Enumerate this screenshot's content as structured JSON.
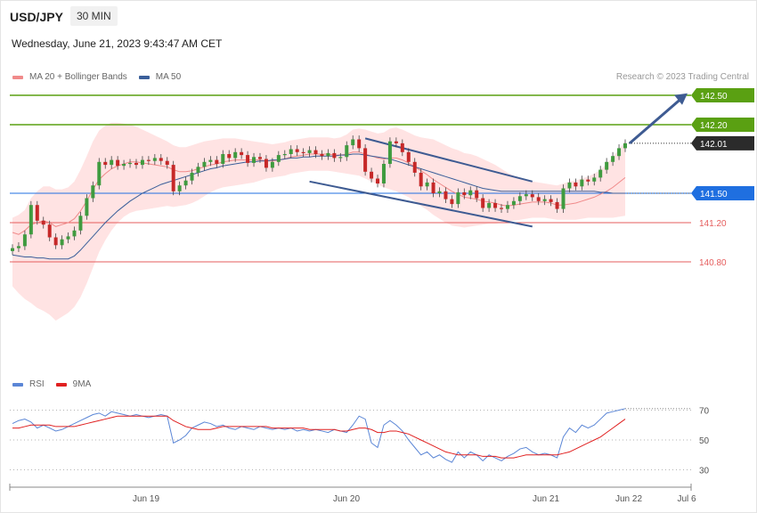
{
  "header": {
    "symbol": "USD/JPY",
    "timeframe": "30 MIN",
    "datetime": "Wednesday, June 21, 2023 9:43:47 AM CET"
  },
  "legend_main": [
    {
      "label": "MA 20 + Bollinger Bands",
      "color": "#f08a8a"
    },
    {
      "label": "MA 50",
      "color": "#3a5f9a"
    }
  ],
  "legend_rsi": [
    {
      "label": "RSI",
      "color": "#5b86d6"
    },
    {
      "label": "9MA",
      "color": "#e02020"
    }
  ],
  "credit": "Research © 2023 Trading Central",
  "chart_data": {
    "type": "candlestick",
    "x_ticks": [
      "Jun 19",
      "Jun 20",
      "Jun 21",
      "Jun 22",
      "Jul 6"
    ],
    "y_range": [
      140.0,
      142.8
    ],
    "levels": [
      {
        "value": 142.5,
        "label": "142.50",
        "color": "#5aa012",
        "style": "resistance"
      },
      {
        "value": 142.2,
        "label": "142.20",
        "color": "#5aa012",
        "style": "resistance"
      },
      {
        "value": 142.01,
        "label": "142.01",
        "color": "#2b2b2b",
        "style": "last"
      },
      {
        "value": 141.5,
        "label": "141.50",
        "color": "#1f6fe0",
        "style": "pivot"
      },
      {
        "value": 141.2,
        "label": "141.20",
        "color": "#e55c5c",
        "style": "support"
      },
      {
        "value": 140.8,
        "label": "140.80",
        "color": "#e55c5c",
        "style": "support"
      }
    ],
    "candles": [
      140.94,
      140.96,
      141.08,
      141.38,
      141.22,
      141.18,
      141.05,
      140.97,
      141.03,
      141.06,
      141.12,
      141.27,
      141.45,
      141.58,
      141.82,
      141.79,
      141.84,
      141.78,
      141.8,
      141.81,
      141.79,
      141.84,
      141.83,
      141.86,
      141.83,
      141.79,
      141.52,
      141.58,
      141.63,
      141.71,
      141.77,
      141.82,
      141.84,
      141.8,
      141.9,
      141.86,
      141.92,
      141.89,
      141.81,
      141.87,
      141.85,
      141.76,
      141.82,
      141.89,
      141.9,
      141.95,
      141.92,
      141.91,
      141.94,
      141.9,
      141.88,
      141.91,
      141.86,
      141.87,
      141.99,
      142.05,
      141.96,
      141.72,
      141.65,
      141.6,
      141.8,
      142.03,
      142.01,
      141.92,
      141.82,
      141.71,
      141.57,
      141.61,
      141.5,
      141.52,
      141.44,
      141.39,
      141.51,
      141.48,
      141.53,
      141.45,
      141.35,
      141.4,
      141.35,
      141.34,
      141.38,
      141.42,
      141.47,
      141.49,
      141.46,
      141.42,
      141.44,
      141.41,
      141.34,
      141.55,
      141.61,
      141.57,
      141.64,
      141.62,
      141.66,
      141.74,
      141.82,
      141.88,
      141.96,
      142.01
    ],
    "ma20": [
      141.1,
      141.08,
      141.12,
      141.18,
      141.2,
      141.22,
      141.2,
      141.16,
      141.18,
      141.2,
      141.24,
      141.32,
      141.42,
      141.54,
      141.64,
      141.7,
      141.75,
      141.78,
      141.8,
      141.82,
      141.82,
      141.81,
      141.8,
      141.79,
      141.78,
      141.77,
      141.74,
      141.72,
      141.72,
      141.73,
      141.75,
      141.77,
      141.79,
      141.8,
      141.82,
      141.83,
      141.84,
      141.84,
      141.84,
      141.84,
      141.84,
      141.83,
      141.83,
      141.84,
      141.85,
      141.87,
      141.88,
      141.89,
      141.9,
      141.9,
      141.9,
      141.9,
      141.89,
      141.89,
      141.9,
      141.92,
      141.92,
      141.9,
      141.88,
      141.86,
      141.85,
      141.86,
      141.86,
      141.84,
      141.81,
      141.77,
      141.73,
      141.69,
      141.64,
      141.6,
      141.56,
      141.52,
      141.49,
      141.46,
      141.45,
      141.44,
      141.42,
      141.41,
      141.4,
      141.38,
      141.37,
      141.38,
      141.39,
      141.4,
      141.41,
      141.41,
      141.41,
      141.4,
      141.38,
      141.38,
      141.39,
      141.4,
      141.42,
      141.44,
      141.46,
      141.49,
      141.52,
      141.56,
      141.61,
      141.66
    ],
    "bb_upper": [
      141.25,
      141.28,
      141.33,
      141.45,
      141.52,
      141.57,
      141.57,
      141.54,
      141.54,
      141.56,
      141.62,
      141.74,
      141.88,
      142.03,
      142.14,
      142.19,
      142.22,
      142.22,
      142.21,
      142.2,
      142.18,
      142.15,
      142.12,
      142.09,
      142.06,
      142.03,
      141.99,
      141.97,
      141.97,
      141.99,
      142.01,
      142.03,
      142.04,
      142.05,
      142.06,
      142.06,
      142.06,
      142.05,
      142.04,
      142.03,
      142.02,
      142.01,
      142.0,
      142.01,
      142.02,
      142.04,
      142.05,
      142.06,
      142.07,
      142.07,
      142.07,
      142.07,
      142.06,
      142.07,
      142.1,
      142.15,
      142.16,
      142.15,
      142.13,
      142.11,
      142.12,
      142.16,
      142.17,
      142.15,
      142.12,
      142.09,
      142.07,
      142.06,
      142.05,
      142.02,
      141.99,
      141.96,
      141.94,
      141.91,
      141.9,
      141.88,
      141.85,
      141.82,
      141.79,
      141.75,
      141.71,
      141.68,
      141.66,
      141.64,
      141.62,
      141.61,
      141.6,
      141.59,
      141.58,
      141.6,
      141.62,
      141.63,
      141.65,
      141.67,
      141.7,
      141.74,
      141.8,
      141.87,
      141.95,
      142.03
    ],
    "bb_lower": [
      140.55,
      140.48,
      140.42,
      140.38,
      140.33,
      140.3,
      140.26,
      140.2,
      140.24,
      140.28,
      140.34,
      140.44,
      140.58,
      140.74,
      140.9,
      141.02,
      141.12,
      141.2,
      141.26,
      141.3,
      141.32,
      141.33,
      141.34,
      141.35,
      141.36,
      141.37,
      141.36,
      141.37,
      141.38,
      141.4,
      141.43,
      141.47,
      141.51,
      141.54,
      141.56,
      141.57,
      141.58,
      141.59,
      141.6,
      141.61,
      141.63,
      141.65,
      141.66,
      141.67,
      141.68,
      141.7,
      141.71,
      141.72,
      141.73,
      141.73,
      141.73,
      141.73,
      141.72,
      141.71,
      141.7,
      141.69,
      141.68,
      141.65,
      141.62,
      141.59,
      141.56,
      141.54,
      141.52,
      141.49,
      141.46,
      141.42,
      141.37,
      141.33,
      141.28,
      141.24,
      141.2,
      141.17,
      141.16,
      141.15,
      141.16,
      141.17,
      141.18,
      141.19,
      141.19,
      141.2,
      141.21,
      141.22,
      141.23,
      141.24,
      141.25,
      141.25,
      141.25,
      141.24,
      141.23,
      141.23,
      141.23,
      141.23,
      141.24,
      141.25,
      141.25,
      141.25,
      141.25,
      141.25,
      141.26,
      141.27
    ],
    "ma50": [
      140.87,
      140.86,
      140.85,
      140.85,
      140.84,
      140.84,
      140.83,
      140.83,
      140.83,
      140.83,
      140.86,
      140.92,
      140.99,
      141.06,
      141.13,
      141.2,
      141.26,
      141.32,
      141.37,
      141.42,
      141.46,
      141.5,
      141.53,
      141.56,
      141.59,
      141.61,
      141.63,
      141.65,
      141.67,
      141.69,
      141.71,
      141.73,
      141.75,
      141.76,
      141.78,
      141.79,
      141.8,
      141.81,
      141.82,
      141.82,
      141.83,
      141.83,
      141.84,
      141.84,
      141.85,
      141.86,
      141.86,
      141.87,
      141.87,
      141.88,
      141.88,
      141.88,
      141.88,
      141.89,
      141.89,
      141.9,
      141.9,
      141.89,
      141.88,
      141.87,
      141.86,
      141.85,
      141.83,
      141.81,
      141.79,
      141.77,
      141.75,
      141.73,
      141.71,
      141.69,
      141.67,
      141.65,
      141.63,
      141.61,
      141.59,
      141.57,
      141.55,
      141.54,
      141.53,
      141.52,
      141.52,
      141.52,
      141.52,
      141.52,
      141.52,
      141.52,
      141.52,
      141.52,
      141.52,
      141.52,
      141.52,
      141.52,
      141.52,
      141.52,
      141.52,
      141.51,
      141.51,
      141.5,
      141.5,
      141.5
    ],
    "channel": {
      "upper": [
        [
          57,
          142.06
        ],
        [
          84,
          141.62
        ]
      ],
      "lower": [
        [
          48,
          141.62
        ],
        [
          84,
          141.16
        ]
      ]
    },
    "rsi_levels": [
      70,
      50,
      30
    ],
    "rsi": [
      61,
      63,
      64,
      62,
      58,
      60,
      58,
      56,
      57,
      59,
      61,
      63,
      65,
      67,
      68,
      66,
      69,
      68,
      67,
      66,
      67,
      66,
      65,
      66,
      67,
      66,
      48,
      50,
      53,
      58,
      60,
      62,
      61,
      59,
      60,
      58,
      57,
      59,
      58,
      57,
      59,
      58,
      57,
      58,
      57,
      58,
      56,
      57,
      56,
      57,
      56,
      55,
      57,
      56,
      55,
      60,
      66,
      64,
      48,
      45,
      60,
      63,
      60,
      56,
      50,
      45,
      40,
      42,
      38,
      40,
      37,
      35,
      42,
      38,
      42,
      40,
      36,
      40,
      38,
      36,
      39,
      41,
      44,
      45,
      42,
      40,
      41,
      40,
      38,
      52,
      58,
      55,
      60,
      58,
      60,
      64,
      68,
      69,
      70,
      71
    ],
    "rsi_ma": [
      58,
      58,
      59,
      60,
      60,
      60,
      60,
      59,
      59,
      59,
      59,
      60,
      61,
      62,
      63,
      64,
      65,
      66,
      66,
      66,
      66,
      66,
      66,
      66,
      66,
      66,
      63,
      61,
      59,
      58,
      57,
      57,
      57,
      58,
      59,
      59,
      59,
      59,
      59,
      59,
      59,
      59,
      58,
      58,
      58,
      58,
      58,
      58,
      57,
      57,
      57,
      57,
      57,
      56,
      56,
      57,
      58,
      58,
      57,
      55,
      55,
      56,
      56,
      55,
      54,
      52,
      50,
      48,
      46,
      44,
      42,
      41,
      40,
      40,
      40,
      40,
      39,
      39,
      39,
      38,
      38,
      38,
      39,
      40,
      40,
      40,
      40,
      40,
      40,
      41,
      42,
      44,
      46,
      48,
      50,
      52,
      55,
      58,
      61,
      64
    ]
  }
}
